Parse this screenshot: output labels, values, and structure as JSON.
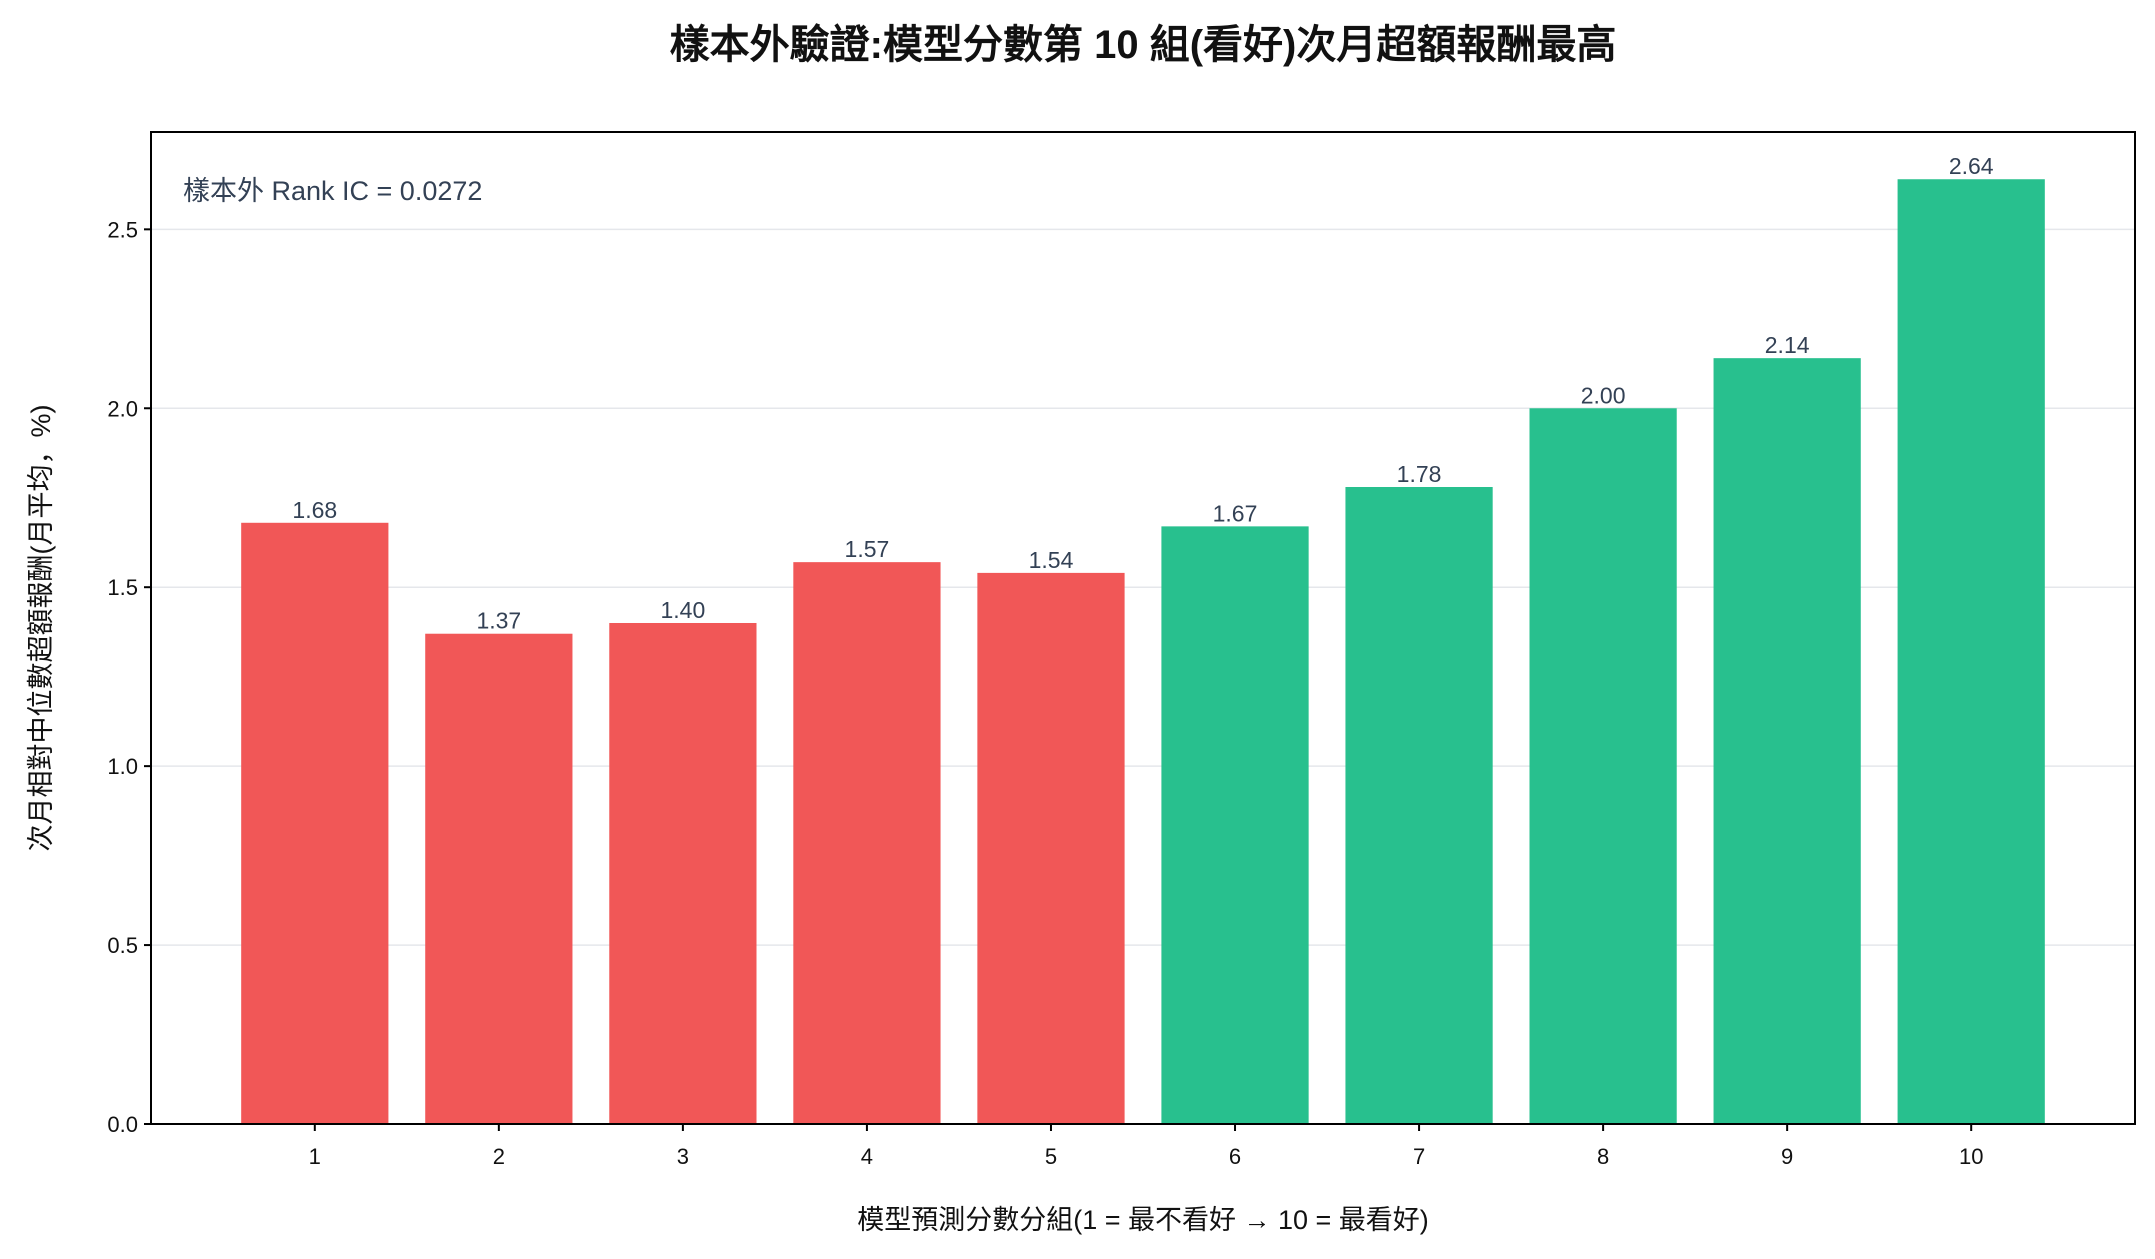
{
  "chart_data": {
    "type": "bar",
    "title": "樣本外驗證:模型分數第 10 組(看好)次月超額報酬最高",
    "xlabel": "模型預測分數分組(1 = 最不看好 → 10 = 最看好)",
    "ylabel": "次月相對中位數超額報酬(月平均，%)",
    "categories": [
      "1",
      "2",
      "3",
      "4",
      "5",
      "6",
      "7",
      "8",
      "9",
      "10"
    ],
    "values": [
      1.68,
      1.37,
      1.4,
      1.57,
      1.54,
      1.67,
      1.78,
      2.0,
      2.14,
      2.64
    ],
    "data_labels": [
      "1.68",
      "1.37",
      "1.40",
      "1.57",
      "1.54",
      "1.67",
      "1.78",
      "2.00",
      "2.14",
      "2.64"
    ],
    "bar_colors": [
      "#F15757",
      "#F15757",
      "#F15757",
      "#F15757",
      "#F15757",
      "#28C08E",
      "#28C08E",
      "#28C08E",
      "#28C08E",
      "#28C08E"
    ],
    "ylim": [
      0,
      2.772
    ],
    "yticks": [
      0,
      0.5,
      1.0,
      1.5,
      2.0,
      2.5
    ],
    "ytick_labels": [
      "0.0",
      "0.5",
      "1.0",
      "1.5",
      "2.0",
      "2.5"
    ],
    "grid": {
      "y": true,
      "x": false,
      "color": "#E5E7EB"
    },
    "annotation": "樣本外 Rank IC = 0.0272",
    "annotation_color": "#334155",
    "data_label_color": "#334155"
  }
}
